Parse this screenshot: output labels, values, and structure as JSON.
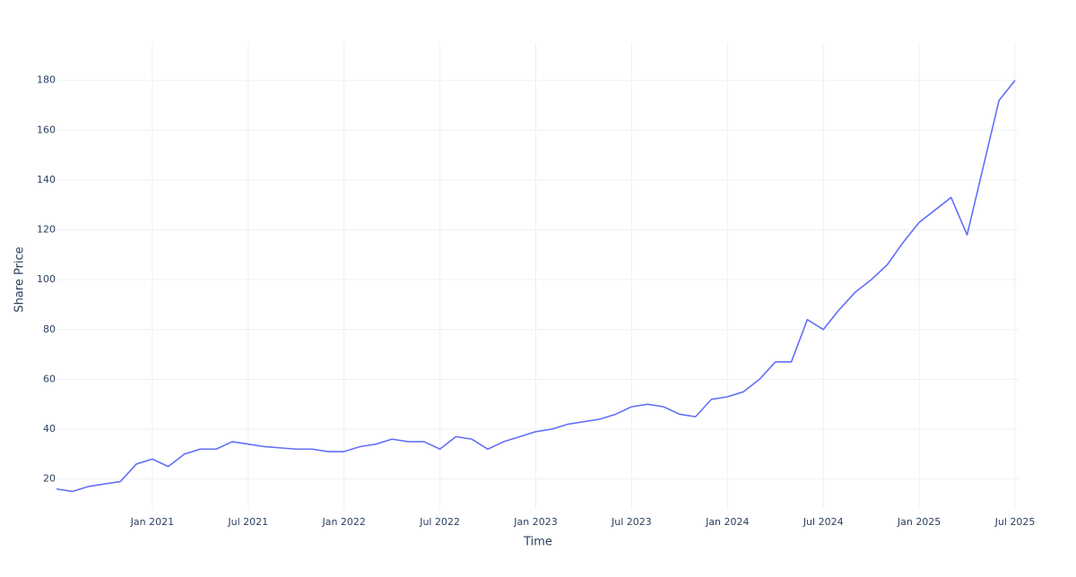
{
  "chart_data": {
    "type": "line",
    "xlabel": "Time",
    "ylabel": "Share Price",
    "x": [
      "2020-07",
      "2020-08",
      "2020-09",
      "2020-10",
      "2020-11",
      "2020-12",
      "2021-01",
      "2021-02",
      "2021-03",
      "2021-04",
      "2021-05",
      "2021-06",
      "2021-07",
      "2021-08",
      "2021-09",
      "2021-10",
      "2021-11",
      "2021-12",
      "2022-01",
      "2022-02",
      "2022-03",
      "2022-04",
      "2022-05",
      "2022-06",
      "2022-07",
      "2022-08",
      "2022-09",
      "2022-10",
      "2022-11",
      "2022-12",
      "2023-01",
      "2023-02",
      "2023-03",
      "2023-04",
      "2023-05",
      "2023-06",
      "2023-07",
      "2023-08",
      "2023-09",
      "2023-10",
      "2023-11",
      "2023-12",
      "2024-01",
      "2024-02",
      "2024-03",
      "2024-04",
      "2024-05",
      "2024-06",
      "2024-07",
      "2024-08",
      "2024-09",
      "2024-10",
      "2024-11",
      "2024-12",
      "2025-01",
      "2025-02",
      "2025-03",
      "2025-04",
      "2025-05",
      "2025-06",
      "2025-07"
    ],
    "series": [
      {
        "name": "Share Price",
        "color": "#636efa",
        "values": [
          16,
          15,
          17,
          18,
          19,
          26,
          28,
          25,
          30,
          32,
          32,
          35,
          34,
          33,
          32.5,
          32,
          32,
          31,
          31,
          33,
          34,
          36,
          35,
          35,
          32,
          37,
          36,
          32,
          35,
          37,
          39,
          40,
          42,
          43,
          44,
          46,
          49,
          50,
          49,
          46,
          45,
          52,
          53,
          55,
          60,
          67,
          67,
          84,
          80,
          88,
          95,
          100,
          106,
          115,
          123,
          128,
          133,
          118,
          145,
          172,
          180
        ]
      }
    ],
    "xlim": [
      "2020-07",
      "2025-07"
    ],
    "xticks": [
      {
        "value": "2021-01",
        "label": "Jan 2021"
      },
      {
        "value": "2021-07",
        "label": "Jul 2021"
      },
      {
        "value": "2022-01",
        "label": "Jan 2022"
      },
      {
        "value": "2022-07",
        "label": "Jul 2022"
      },
      {
        "value": "2023-01",
        "label": "Jan 2023"
      },
      {
        "value": "2023-07",
        "label": "Jul 2023"
      },
      {
        "value": "2024-01",
        "label": "Jan 2024"
      },
      {
        "value": "2024-07",
        "label": "Jul 2024"
      },
      {
        "value": "2025-01",
        "label": "Jan 2025"
      },
      {
        "value": "2025-07",
        "label": "Jul 2025"
      }
    ],
    "ylim": [
      8,
      195
    ],
    "yticks": [
      20,
      40,
      60,
      80,
      100,
      120,
      140,
      160,
      180
    ],
    "grid": true
  }
}
